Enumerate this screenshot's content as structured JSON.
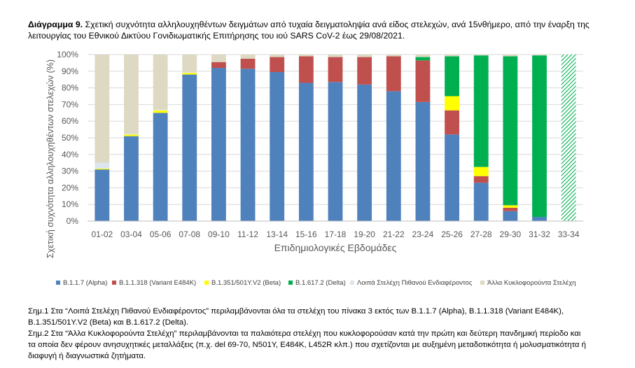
{
  "title": {
    "bold": "Διάγραμμα 9.",
    "text": "Σχετική συχνότητα αλληλουχηθέντων δειγμάτων από τυχαία δειγματοληψία ανά είδος στελεχών, ανά 15νθήμερο, από την έναρξη της λειτουργίας του Εθνικού Δικτύου Γονιδιωματικής Επιτήρησης του ιού SARS CoV-2 έως 29/08/2021."
  },
  "notes": {
    "note1": "Σημ.1 Στα “Λοιπά Στελέχη Πιθανού Ενδιαφέροντος” περιλαμβάνονται όλα τα στελέχη του πίνακα 3 εκτός των B.1.1.7 (Alpha), B.1.1.318 (Variant E484K), B.1.351/501Y.V2 (Beta) και B.1.617.2 (Delta).",
    "note2": "Σημ.2 Στα “Άλλα Κυκλοφορούντα Στελέχη” περιλαμβάνονται τα παλαιότερα στελέχη που κυκλοφορούσαν κατά την πρώτη και δεύτερη πανδημική περίοδο και τα οποία δεν φέρουν ανησυχητικές μεταλλάξεις (π.χ. del 69-70, N501Y, E484K, L452R κλπ.) που σχετίζονται με αυξημένη μεταδοτικότητα ή μολυσματικότητα ή διαφυγή ή διαγνωστικά ζητήματα."
  },
  "chart_data": {
    "type": "bar",
    "stacked": true,
    "xlabel": "Επιδημιολογικές Εβδομάδες",
    "ylabel": "Σχετική συχνότητα αλληλουχηθέντων στελεχών (%)",
    "ylim": [
      0,
      100
    ],
    "yticks": [
      "0%",
      "10%",
      "20%",
      "30%",
      "40%",
      "50%",
      "60%",
      "70%",
      "80%",
      "90%",
      "100%"
    ],
    "grid": true,
    "legend_position": "bottom",
    "categories": [
      "01-02",
      "03-04",
      "05-06",
      "07-08",
      "09-10",
      "11-12",
      "13-14",
      "15-16",
      "17-18",
      "19-20",
      "21-22",
      "23-24",
      "25-26",
      "27-28",
      "29-30",
      "31-32",
      "33-34"
    ],
    "series": [
      {
        "name": "B.1.1.7 (Alpha)",
        "color": "#4f81bd",
        "values": [
          31,
          51,
          65,
          88,
          92,
          91.5,
          89.5,
          83,
          83.5,
          82,
          78,
          71.5,
          52,
          23,
          6,
          2.5,
          0
        ]
      },
      {
        "name": "B.1.1.318 (Variant E484K)",
        "color": "#c0504d",
        "values": [
          0,
          0,
          0,
          0,
          3.5,
          6,
          9,
          16,
          15,
          16.5,
          21,
          25,
          14.5,
          4,
          2,
          0,
          0
        ]
      },
      {
        "name": "B.1.351/501Y.V2 (Beta)",
        "color": "#ffff00",
        "values": [
          0.5,
          1,
          1.5,
          1,
          0,
          0,
          0,
          0,
          0,
          0,
          0,
          0,
          8.5,
          5.5,
          1.5,
          0,
          0
        ]
      },
      {
        "name": "B.1.617.2 (Delta)",
        "color": "#00b050",
        "values": [
          0,
          0,
          0,
          0,
          0,
          0,
          0,
          0,
          0,
          0,
          0,
          2,
          24,
          67,
          89.5,
          97,
          100
        ]
      },
      {
        "name": "Λοιπά Στελέχη Πιθανού Ενδιαφέροντος",
        "color": "#dde5ee",
        "values": [
          3.5,
          0.5,
          0.5,
          0.5,
          0,
          0,
          0,
          0,
          0,
          0,
          0,
          0,
          0,
          0,
          0,
          0,
          0
        ]
      },
      {
        "name": "Άλλα Κυκλοφορούντα Στελέχη",
        "color": "#ddd9c3",
        "values": [
          65,
          47.5,
          33,
          10.5,
          4.5,
          2.5,
          1.5,
          1,
          1.5,
          1.5,
          1,
          1.5,
          1,
          0.5,
          1,
          0.5,
          0
        ]
      }
    ],
    "hatched_categories": [
      "33-34"
    ]
  }
}
